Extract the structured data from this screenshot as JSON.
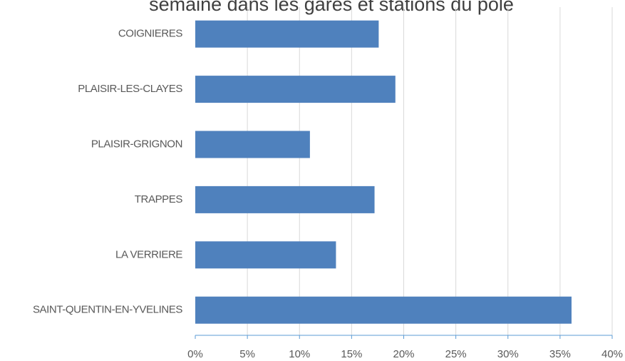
{
  "chart_data": {
    "type": "bar",
    "orientation": "horizontal",
    "title": "semaine dans les gares et stations du pôle",
    "categories": [
      "COIGNIERES",
      "PLAISIR-LES-CLAYES",
      "PLAISIR-GRIGNON",
      "TRAPPES",
      "LA VERRIERE",
      "SAINT-QUENTIN-EN-YVELINES"
    ],
    "values": [
      17.6,
      19.2,
      11.0,
      17.2,
      13.5,
      36.1
    ],
    "color": "#4f81bd",
    "xlim": [
      0,
      40
    ],
    "xticks": [
      {
        "value": 0,
        "label": "0%"
      },
      {
        "value": 5,
        "label": "5%"
      },
      {
        "value": 10,
        "label": "10%"
      },
      {
        "value": 15,
        "label": "15%"
      },
      {
        "value": 20,
        "label": "20%"
      },
      {
        "value": 25,
        "label": "25%"
      },
      {
        "value": 30,
        "label": "30%"
      },
      {
        "value": 35,
        "label": "35%"
      },
      {
        "value": 40,
        "label": "40%"
      }
    ],
    "grid": true
  }
}
